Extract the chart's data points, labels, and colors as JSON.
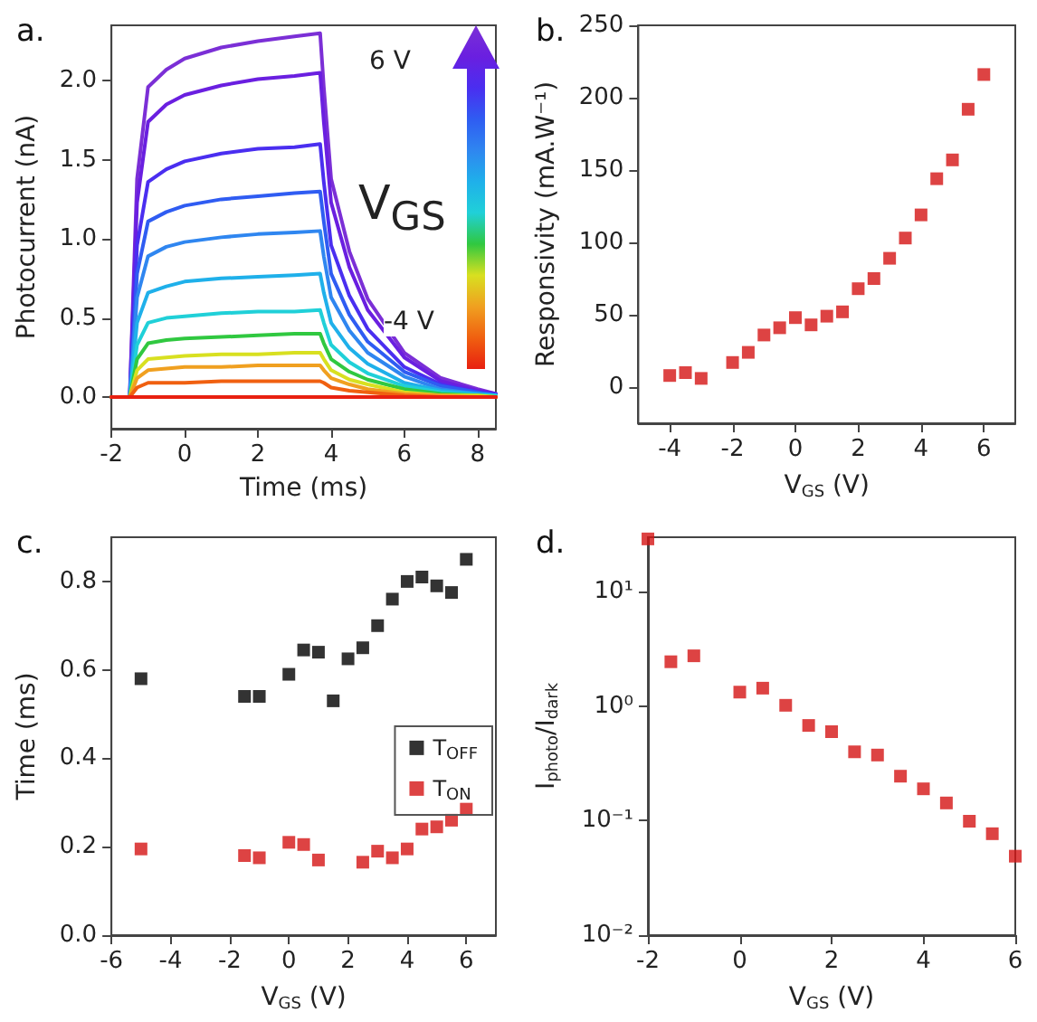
{
  "chart_data": [
    {
      "type": "line",
      "title": "a.",
      "xlabel": "Time (ms)",
      "ylabel": "Photocurrent (nA)",
      "xlim": [
        -2,
        8.5
      ],
      "xticks": [
        -2,
        0,
        2,
        4,
        6,
        8
      ],
      "ylim": [
        -0.2,
        2.35
      ],
      "yticks": [
        {
          "value": 0,
          "label": "0.0"
        },
        {
          "value": 0.5,
          "label": "0.5"
        },
        {
          "value": 1,
          "label": "1.0"
        },
        {
          "value": 1.5,
          "label": "1.5"
        },
        {
          "value": 2,
          "label": "2.0"
        }
      ],
      "marker": "none",
      "line_style": "solid",
      "legend": false,
      "annotations": [
        "6 V",
        "V$_{GS}$",
        "-4 V"
      ],
      "x": [
        -2,
        -1.5,
        -1.3,
        -1,
        -0.5,
        0,
        1,
        2,
        3,
        3.7,
        3.8,
        4,
        4.5,
        5,
        6,
        7,
        8,
        8.5
      ],
      "series": [
        {
          "color": "#7b2fd6",
          "values": [
            0,
            0,
            1.38,
            1.96,
            2.07,
            2.14,
            2.21,
            2.25,
            2.28,
            2.3,
            1.96,
            1.38,
            0.92,
            0.62,
            0.28,
            0.12,
            0.05,
            0.02
          ]
        },
        {
          "color": "#6a1fe0",
          "values": [
            0,
            0,
            1.23,
            1.74,
            1.85,
            1.91,
            1.97,
            2.01,
            2.03,
            2.05,
            1.74,
            1.23,
            0.82,
            0.55,
            0.25,
            0.1,
            0.04,
            0.02
          ]
        },
        {
          "color": "#4a2ef0",
          "values": [
            0,
            0,
            0.96,
            1.36,
            1.44,
            1.49,
            1.54,
            1.57,
            1.58,
            1.6,
            1.36,
            0.96,
            0.64,
            0.43,
            0.19,
            0.08,
            0.03,
            0.02
          ]
        },
        {
          "color": "#2f5cf2",
          "values": [
            0,
            0,
            0.78,
            1.11,
            1.17,
            1.21,
            1.25,
            1.27,
            1.29,
            1.3,
            1.11,
            0.78,
            0.52,
            0.35,
            0.16,
            0.07,
            0.03,
            0.01
          ]
        },
        {
          "color": "#2f86f0",
          "values": [
            0,
            0,
            0.63,
            0.89,
            0.95,
            0.98,
            1.01,
            1.03,
            1.04,
            1.05,
            0.89,
            0.63,
            0.42,
            0.28,
            0.13,
            0.05,
            0.02,
            0.01
          ]
        },
        {
          "color": "#1fb0ea",
          "values": [
            0,
            0,
            0.47,
            0.66,
            0.7,
            0.73,
            0.75,
            0.76,
            0.77,
            0.78,
            0.66,
            0.47,
            0.31,
            0.21,
            0.09,
            0.04,
            0.02,
            0.01
          ]
        },
        {
          "color": "#20d0d8",
          "values": [
            0,
            0,
            0.33,
            0.47,
            0.5,
            0.51,
            0.53,
            0.54,
            0.54,
            0.55,
            0.47,
            0.33,
            0.22,
            0.15,
            0.07,
            0.03,
            0.01,
            0.01
          ]
        },
        {
          "color": "#30c840",
          "values": [
            0,
            0,
            0.24,
            0.34,
            0.36,
            0.37,
            0.38,
            0.39,
            0.4,
            0.4,
            0.34,
            0.24,
            0.16,
            0.11,
            0.05,
            0.02,
            0.01,
            0
          ]
        },
        {
          "color": "#d8e020",
          "values": [
            0,
            0,
            0.17,
            0.24,
            0.25,
            0.26,
            0.27,
            0.27,
            0.28,
            0.28,
            0.24,
            0.17,
            0.11,
            0.08,
            0.03,
            0.01,
            0.01,
            0
          ]
        },
        {
          "color": "#f0a020",
          "values": [
            0,
            0,
            0.12,
            0.17,
            0.18,
            0.19,
            0.19,
            0.2,
            0.2,
            0.2,
            0.17,
            0.12,
            0.08,
            0.05,
            0.02,
            0.01,
            0,
            0
          ]
        },
        {
          "color": "#f06010",
          "values": [
            0,
            0,
            0.06,
            0.09,
            0.09,
            0.09,
            0.1,
            0.1,
            0.1,
            0.1,
            0.09,
            0.06,
            0.04,
            0.03,
            0.01,
            0,
            0,
            0
          ]
        },
        {
          "color": "#e82010",
          "values": [
            0,
            0,
            0,
            0,
            0,
            0,
            0,
            0,
            0,
            0,
            0,
            0,
            0,
            0,
            0,
            0,
            0,
            0
          ]
        }
      ]
    },
    {
      "type": "scatter",
      "title": "b.",
      "xlabel": "V$_{GS}$ (V)",
      "ylabel": "Responsivity (mA.W⁻¹)",
      "xlim": [
        -5,
        7
      ],
      "xticks": [
        -4,
        -2,
        0,
        2,
        4,
        6
      ],
      "ylim": [
        -25,
        250
      ],
      "yticks": [
        0,
        50,
        100,
        150,
        200,
        250
      ],
      "marker": "square",
      "legend": false,
      "x": [
        -4,
        -3.5,
        -3,
        -2,
        -1.5,
        -1,
        -0.5,
        0,
        0.5,
        1,
        1.5,
        2,
        2.5,
        3,
        3.5,
        4,
        4.5,
        5,
        5.5,
        6
      ],
      "series": [
        {
          "color": "#d41414",
          "values": [
            8,
            10,
            6,
            17,
            24,
            36,
            41,
            48,
            43,
            49,
            52,
            68,
            75,
            89,
            103,
            119,
            144,
            157,
            192,
            216
          ]
        }
      ]
    },
    {
      "type": "scatter",
      "title": "c.",
      "xlabel": "V$_{GS}$ (V)",
      "ylabel": "Time (ms)",
      "xlim": [
        -6,
        7
      ],
      "xticks": [
        -6,
        -4,
        -2,
        0,
        2,
        4,
        6
      ],
      "ylim": [
        0,
        0.9
      ],
      "yticks": [
        {
          "value": 0,
          "label": "0.0"
        },
        {
          "value": 0.2,
          "label": "0.2"
        },
        {
          "value": 0.4,
          "label": "0.4"
        },
        {
          "value": 0.6,
          "label": "0.6"
        },
        {
          "value": 0.8,
          "label": "0.8"
        }
      ],
      "marker": "square",
      "legend": "right",
      "series": [
        {
          "name": "T$_{OFF}$",
          "color": "#000000",
          "x": [
            -5,
            -1.5,
            -1,
            0,
            0.5,
            1,
            1.5,
            2,
            2.5,
            3,
            3.5,
            4,
            4.5,
            5,
            5.5,
            6
          ],
          "values": [
            0.58,
            0.54,
            0.54,
            0.59,
            0.645,
            0.64,
            0.53,
            0.625,
            0.65,
            0.7,
            0.76,
            0.8,
            0.81,
            0.79,
            0.775,
            0.85
          ]
        },
        {
          "name": "T$_{ON}$",
          "color": "#d41414",
          "x": [
            -5,
            -1.5,
            -1,
            0,
            0.5,
            1,
            2.5,
            3,
            3.5,
            4,
            4.5,
            5,
            5.5,
            6
          ],
          "values": [
            0.195,
            0.18,
            0.175,
            0.21,
            0.205,
            0.17,
            0.165,
            0.19,
            0.175,
            0.195,
            0.24,
            0.245,
            0.26,
            0.285
          ]
        }
      ]
    },
    {
      "type": "scatter",
      "title": "d.",
      "xlabel": "V$_{GS}$ (V)",
      "ylabel": "I$_{photo}$/I$_{dark}$",
      "log": "y",
      "xlim": [
        -2,
        6
      ],
      "xticks": [
        -2,
        0,
        2,
        4,
        6
      ],
      "ylim": [
        0.01,
        30
      ],
      "yticks": [
        {
          "value": 0.01,
          "label": "10⁻²"
        },
        {
          "value": 0.1,
          "label": "10⁻¹"
        },
        {
          "value": 1,
          "label": "10⁰"
        },
        {
          "value": 10,
          "label": "10¹"
        }
      ],
      "marker": "square",
      "legend": false,
      "x": [
        -2,
        -1.5,
        -1,
        0,
        0.5,
        1,
        1.5,
        2,
        2.5,
        3,
        3.5,
        4,
        4.5,
        5,
        5.5,
        6
      ],
      "series": [
        {
          "color": "#d41414",
          "values": [
            29,
            2.45,
            2.76,
            1.33,
            1.44,
            1.02,
            0.68,
            0.6,
            0.4,
            0.375,
            0.245,
            0.19,
            0.143,
            0.099,
            0.077,
            0.049
          ]
        }
      ]
    }
  ]
}
